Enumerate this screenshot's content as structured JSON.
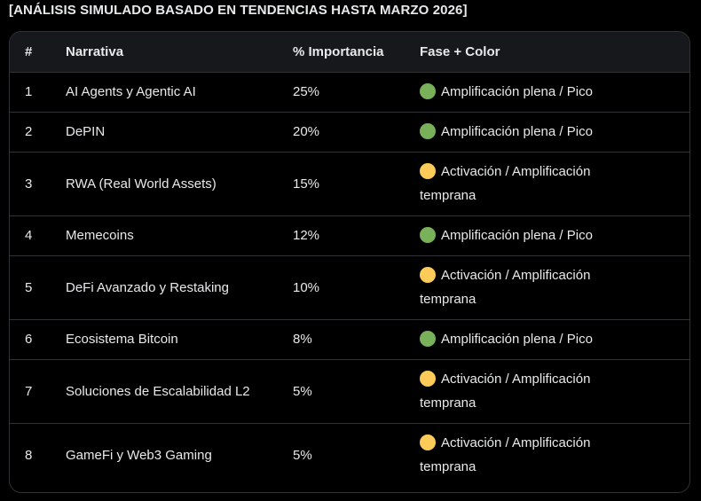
{
  "heading": "[ANÁLISIS SIMULADO BASADO EN TENDENCIAS HASTA MARZO 2026]",
  "colors": {
    "green": "#78b159",
    "yellow": "#fdcb58"
  },
  "table": {
    "headers": {
      "num": "#",
      "narrativa": "Narrativa",
      "importancia": "% Importancia",
      "fase": "Fase + Color"
    },
    "rows": [
      {
        "num": "1",
        "narrativa": "AI Agents y Agentic AI",
        "importancia": "25%",
        "fase": "Amplificación plena / Pico",
        "color": "green-circle-icon"
      },
      {
        "num": "2",
        "narrativa": "DePIN",
        "importancia": "20%",
        "fase": "Amplificación plena / Pico",
        "color": "green-circle-icon"
      },
      {
        "num": "3",
        "narrativa": "RWA (Real World Assets)",
        "importancia": "15%",
        "fase": "Activación / Amplificación temprana",
        "color": "yellow-circle-icon"
      },
      {
        "num": "4",
        "narrativa": "Memecoins",
        "importancia": "12%",
        "fase": "Amplificación plena / Pico",
        "color": "green-circle-icon"
      },
      {
        "num": "5",
        "narrativa": "DeFi Avanzado y Restaking",
        "importancia": "10%",
        "fase": "Activación / Amplificación temprana",
        "color": "yellow-circle-icon"
      },
      {
        "num": "6",
        "narrativa": "Ecosistema Bitcoin",
        "importancia": "8%",
        "fase": "Amplificación plena / Pico",
        "color": "green-circle-icon"
      },
      {
        "num": "7",
        "narrativa": "Soluciones de Escalabilidad L2",
        "importancia": "5%",
        "fase": "Activación / Amplificación temprana",
        "color": "yellow-circle-icon"
      },
      {
        "num": "8",
        "narrativa": "GameFi y Web3 Gaming",
        "importancia": "5%",
        "fase": "Activación / Amplificación temprana",
        "color": "yellow-circle-icon"
      }
    ]
  }
}
